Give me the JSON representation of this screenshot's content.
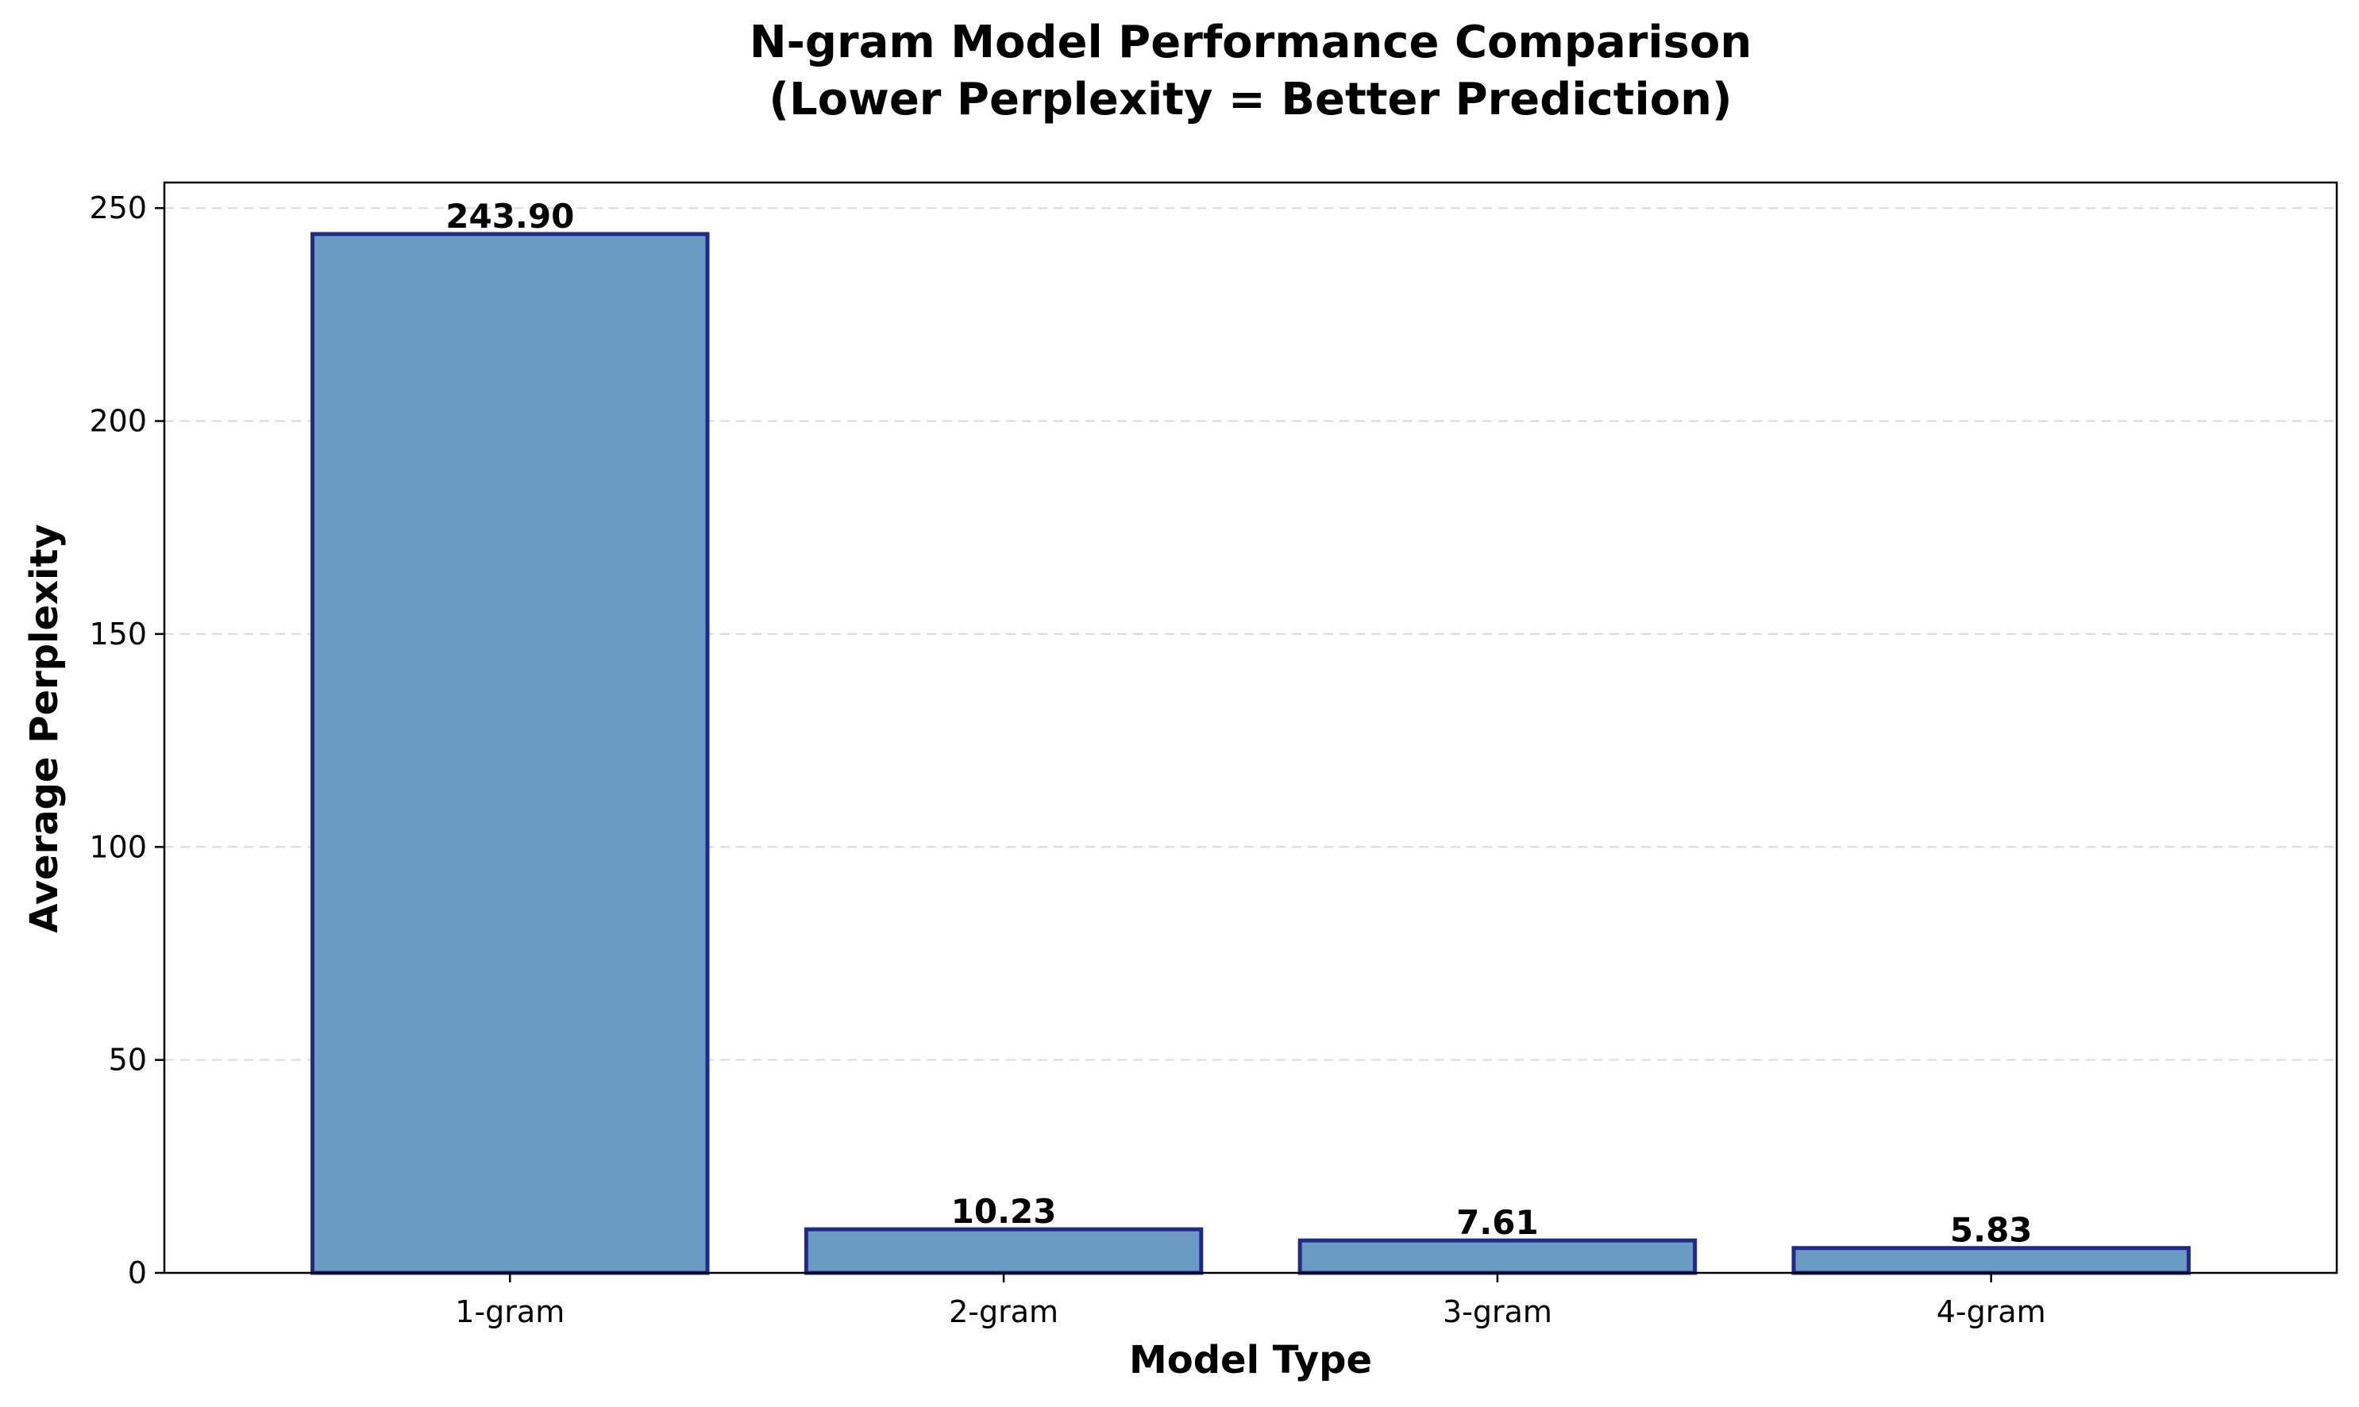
{
  "chart_data": {
    "type": "bar",
    "title_line1": "N-gram Model Performance Comparison",
    "title_line2": "(Lower Perplexity = Better Prediction)",
    "xlabel": "Model Type",
    "ylabel": "Average Perplexity",
    "categories": [
      "1-gram",
      "2-gram",
      "3-gram",
      "4-gram"
    ],
    "values": [
      243.9,
      10.23,
      7.61,
      5.83
    ],
    "value_labels": [
      "243.90",
      "10.23",
      "7.61",
      "5.83"
    ],
    "ylim": [
      0,
      256
    ],
    "yticks": [
      0,
      50,
      100,
      150,
      200,
      250
    ],
    "grid": "horizontal-dashed",
    "legend": "none",
    "colors": {
      "bar_fill": "#6b9bc3",
      "bar_edge": "#1f2a8a",
      "grid": "#d9d9d9",
      "text": "#000000"
    }
  }
}
